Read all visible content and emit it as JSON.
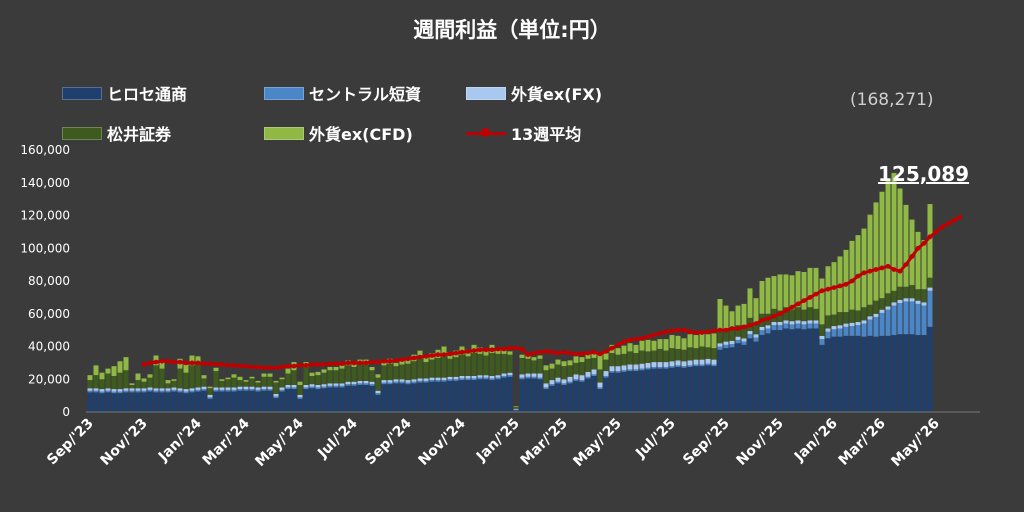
{
  "chart_data": {
    "type": "bar",
    "stacked": true,
    "title": "週間利益（単位:円）",
    "xlabel": "",
    "ylabel": "",
    "ylim": [
      0,
      160000
    ],
    "yticks": [
      0,
      20000,
      40000,
      60000,
      80000,
      100000,
      120000,
      140000,
      160000
    ],
    "ytick_labels": [
      "0",
      "20,000",
      "40,000",
      "60,000",
      "80,000",
      "100,000",
      "120,000",
      "140,000",
      "160,000"
    ],
    "x_tick_labels": [
      "Sep/'23",
      "Nov/'23",
      "Jan/'24",
      "Mar/'24",
      "May/'24",
      "Jul/'24",
      "Sep/'24",
      "Nov/'24",
      "Jan/'25",
      "Mar/'25",
      "May/'25",
      "Jul/'25",
      "Sep/'25",
      "Nov/'25",
      "Jan/'26",
      "Mar/'26",
      "May/'26"
    ],
    "x_tick_week_index": [
      0,
      9,
      18,
      26,
      35,
      44,
      53,
      62,
      71,
      79,
      88,
      97,
      106,
      115,
      124,
      132,
      141
    ],
    "grid": false,
    "legend_position": "top-left",
    "legend_columns": 3,
    "series": [
      {
        "name": "ヒロセ通商",
        "kind": "bar",
        "color": "#1f3f6e",
        "values": [
          12000,
          12000,
          11500,
          12000,
          11500,
          11500,
          12000,
          12000,
          12000,
          12000,
          12500,
          12000,
          12000,
          12000,
          12500,
          12000,
          11500,
          12000,
          12500,
          13000,
          8000,
          12500,
          12500,
          12500,
          12500,
          13000,
          13000,
          13000,
          12500,
          13000,
          13000,
          8500,
          12500,
          14000,
          14000,
          8000,
          14000,
          14500,
          14000,
          14500,
          15000,
          15000,
          15000,
          16000,
          16000,
          16500,
          16500,
          16000,
          10500,
          17000,
          17000,
          17500,
          17500,
          17000,
          17500,
          18000,
          18000,
          18500,
          18500,
          18500,
          19000,
          19000,
          19500,
          19500,
          19500,
          20000,
          20000,
          19500,
          20000,
          21000,
          21500,
          1000,
          20000,
          20500,
          20500,
          20000,
          14000,
          16000,
          17500,
          16500,
          17500,
          19000,
          18500,
          20500,
          22000,
          14000,
          21000,
          24000,
          24000,
          24500,
          25000,
          25000,
          25500,
          26000,
          26500,
          26500,
          26500,
          27000,
          27500,
          27000,
          27500,
          28000,
          28000,
          28500,
          28000,
          38000,
          39000,
          39500,
          42000,
          41000,
          45000,
          43000,
          47000,
          48000,
          50000,
          50000,
          51000,
          50500,
          51000,
          50500,
          51000,
          51000,
          41000,
          45000,
          46000,
          46000,
          46500,
          46500,
          46500,
          46000,
          46500,
          46000,
          46500,
          46500,
          47000,
          47500,
          47500,
          47500,
          47000,
          47000,
          52000
        ]
      },
      {
        "name": "セントラル短資",
        "kind": "bar",
        "color": "#4a86c8",
        "values": [
          1000,
          1000,
          1000,
          1000,
          1000,
          1000,
          1000,
          1000,
          1000,
          1000,
          1000,
          1000,
          1000,
          1000,
          1000,
          1000,
          1000,
          1000,
          1000,
          1000,
          1000,
          1000,
          1000,
          1000,
          1000,
          1000,
          1000,
          1000,
          1000,
          1000,
          1000,
          1000,
          1000,
          1000,
          1000,
          1000,
          1000,
          1000,
          1000,
          1000,
          1000,
          1000,
          1000,
          1000,
          1000,
          1000,
          1000,
          1000,
          1000,
          1000,
          1000,
          1000,
          1000,
          1000,
          1000,
          1000,
          1000,
          1000,
          1000,
          1000,
          1000,
          1000,
          1000,
          1000,
          1000,
          1000,
          1000,
          1000,
          1000,
          1000,
          1000,
          500,
          1000,
          1000,
          1000,
          1000,
          1000,
          1000,
          1000,
          1000,
          1000,
          1000,
          1000,
          1000,
          1000,
          1000,
          1000,
          1000,
          1000,
          1000,
          1000,
          1000,
          1000,
          1000,
          1000,
          1000,
          1000,
          1000,
          1000,
          1000,
          1000,
          1000,
          1000,
          1000,
          1000,
          2000,
          2000,
          2000,
          2000,
          2000,
          2500,
          2500,
          3000,
          3000,
          3000,
          3000,
          3000,
          3000,
          3000,
          3000,
          3000,
          3000,
          3500,
          4000,
          4500,
          5000,
          5500,
          6000,
          6500,
          8000,
          10000,
          12000,
          14000,
          16000,
          18000,
          19000,
          20000,
          20000,
          19000,
          18000,
          22000
        ]
      },
      {
        "name": "外貨ex(FX)",
        "kind": "bar",
        "color": "#a8c8f0",
        "values": [
          1500,
          1500,
          1500,
          1500,
          1500,
          1500,
          1500,
          1500,
          1500,
          1500,
          1500,
          1500,
          1500,
          1500,
          1500,
          1500,
          1500,
          1500,
          1500,
          1500,
          1500,
          1500,
          1500,
          1500,
          1500,
          1500,
          1500,
          1500,
          1500,
          1500,
          1500,
          1500,
          1500,
          1500,
          1500,
          1500,
          1500,
          1500,
          1500,
          1500,
          1500,
          1500,
          1500,
          1500,
          1500,
          1500,
          1500,
          1500,
          1500,
          1500,
          1500,
          1500,
          1500,
          1500,
          1500,
          1500,
          1500,
          1500,
          1500,
          1500,
          1500,
          1500,
          1500,
          1500,
          1500,
          1500,
          1500,
          1500,
          1500,
          1500,
          1500,
          500,
          2000,
          2000,
          2000,
          2500,
          2500,
          2500,
          2500,
          2500,
          3000,
          3000,
          3000,
          3000,
          3000,
          3000,
          3000,
          3000,
          3000,
          3000,
          3000,
          3000,
          3000,
          3000,
          3000,
          3000,
          3000,
          3000,
          3000,
          3000,
          3000,
          3000,
          3000,
          3000,
          3000,
          2000,
          2000,
          2000,
          2000,
          2000,
          2000,
          2000,
          2000,
          2000,
          2000,
          2000,
          2000,
          2000,
          2000,
          2000,
          2000,
          2000,
          2000,
          2000,
          2000,
          2000,
          2000,
          2000,
          2000,
          2000,
          2000,
          2000,
          2000,
          2000,
          2000,
          2000,
          2000,
          2000,
          2000,
          2000,
          2000
        ]
      },
      {
        "name": "松井証券",
        "kind": "bar",
        "color": "#3f5a1e",
        "values": [
          5000,
          8000,
          6000,
          9000,
          8000,
          10000,
          11000,
          2000,
          5000,
          4000,
          6000,
          14000,
          12000,
          3000,
          4000,
          12000,
          10000,
          14000,
          15000,
          5000,
          4000,
          10000,
          4000,
          5000,
          6000,
          4000,
          3000,
          5000,
          3000,
          6000,
          6000,
          7000,
          5000,
          7000,
          9000,
          6000,
          11000,
          5000,
          6000,
          7000,
          8000,
          8000,
          9000,
          10000,
          9000,
          10000,
          10000,
          7000,
          8000,
          9000,
          10000,
          8000,
          9000,
          10000,
          11000,
          12000,
          10000,
          11000,
          12000,
          13000,
          11000,
          12000,
          13000,
          12000,
          14000,
          13000,
          12000,
          14000,
          13000,
          12000,
          11000,
          1000,
          10000,
          9000,
          8000,
          9000,
          8000,
          7000,
          8000,
          8000,
          7000,
          7000,
          8000,
          8000,
          7000,
          8000,
          7000,
          8000,
          7000,
          7000,
          8000,
          7000,
          8000,
          7000,
          7000,
          8000,
          7000,
          8000,
          7000,
          7000,
          8000,
          7000,
          8000,
          7000,
          7000,
          7000,
          7000,
          8000,
          7000,
          8000,
          8000,
          7000,
          8000,
          7000,
          8000,
          7000,
          8000,
          7000,
          8000,
          7000,
          8000,
          7000,
          7000,
          8000,
          7000,
          8000,
          7000,
          8000,
          7000,
          8000,
          7000,
          8000,
          7000,
          8000,
          7000,
          8000,
          7000,
          8000,
          7000,
          8000,
          6000
        ]
      },
      {
        "name": "外貨ex(CFD)",
        "kind": "bar",
        "color": "#8fb845",
        "values": [
          3000,
          6000,
          4000,
          3000,
          6000,
          7000,
          8000,
          1000,
          4000,
          2000,
          2000,
          6000,
          4000,
          2000,
          1000,
          6000,
          5000,
          6000,
          4000,
          2000,
          1000,
          2000,
          1000,
          1000,
          2000,
          2000,
          1000,
          1000,
          1000,
          2000,
          2000,
          1000,
          1000,
          3000,
          5000,
          2000,
          3000,
          2000,
          2000,
          2000,
          2000,
          2000,
          2000,
          3000,
          2000,
          3000,
          3000,
          2000,
          2000,
          2000,
          3000,
          2000,
          3000,
          3000,
          4000,
          5000,
          3000,
          4000,
          5000,
          6000,
          4000,
          4000,
          5000,
          4000,
          5000,
          4000,
          3000,
          5000,
          3000,
          2000,
          2000,
          500,
          2000,
          2000,
          2000,
          2000,
          3000,
          3000,
          3000,
          3000,
          3000,
          4000,
          3000,
          3000,
          4000,
          10000,
          4000,
          5000,
          4000,
          5000,
          5000,
          5000,
          6000,
          7000,
          6000,
          6000,
          7000,
          8000,
          8000,
          7000,
          8000,
          8000,
          9000,
          8000,
          9000,
          20000,
          15000,
          10000,
          12000,
          13000,
          18000,
          15000,
          20000,
          22000,
          20000,
          22000,
          20000,
          21000,
          22000,
          23000,
          24000,
          25000,
          28000,
          30000,
          32000,
          34000,
          38000,
          42000,
          46000,
          48000,
          55000,
          60000,
          65000,
          70000,
          72000,
          60000,
          50000,
          40000,
          35000,
          30000,
          45000
        ]
      },
      {
        "name": "13週平均",
        "kind": "line",
        "color": "#c00000",
        "start_week_index": 9,
        "values": [
          29000,
          30000,
          30500,
          31000,
          31000,
          30500,
          30500,
          30000,
          30000,
          30000,
          29500,
          29500,
          29000,
          29000,
          28500,
          28500,
          28000,
          28000,
          27500,
          27500,
          27000,
          27000,
          27000,
          27500,
          28000,
          28000,
          28500,
          28500,
          29000,
          29000,
          29000,
          29500,
          29500,
          29500,
          30000,
          30000,
          30000,
          30000,
          30500,
          30500,
          31000,
          31000,
          31500,
          32000,
          32500,
          33000,
          33500,
          34000,
          34500,
          35000,
          35000,
          35500,
          36000,
          36500,
          37000,
          37500,
          38000,
          38000,
          38000,
          38500,
          38500,
          39000,
          39000,
          38500,
          35000,
          36000,
          36500,
          37000,
          36500,
          36000,
          36500,
          36000,
          35500,
          35500,
          36000,
          36500,
          35500,
          37000,
          39000,
          41000,
          43000,
          44000,
          44500,
          45000,
          46000,
          47000,
          48000,
          49000,
          49500,
          50000,
          50000,
          49000,
          48500,
          48500,
          49000,
          49500,
          50000,
          50000,
          51000,
          51000,
          52000,
          53000,
          54000,
          56000,
          57000,
          58500,
          60000,
          62000,
          64000,
          66000,
          68000,
          70000,
          72000,
          74000,
          75000,
          76000,
          77000,
          78000,
          80000,
          83000,
          85000,
          86000,
          87000,
          88000,
          89000,
          87000,
          86000,
          90000,
          95000,
          100000,
          103000,
          107000,
          110000,
          113000,
          115000,
          117000,
          119000
        ]
      }
    ],
    "annotations": [
      {
        "text": "(168,271)"
      },
      {
        "text": "125,089"
      }
    ]
  }
}
